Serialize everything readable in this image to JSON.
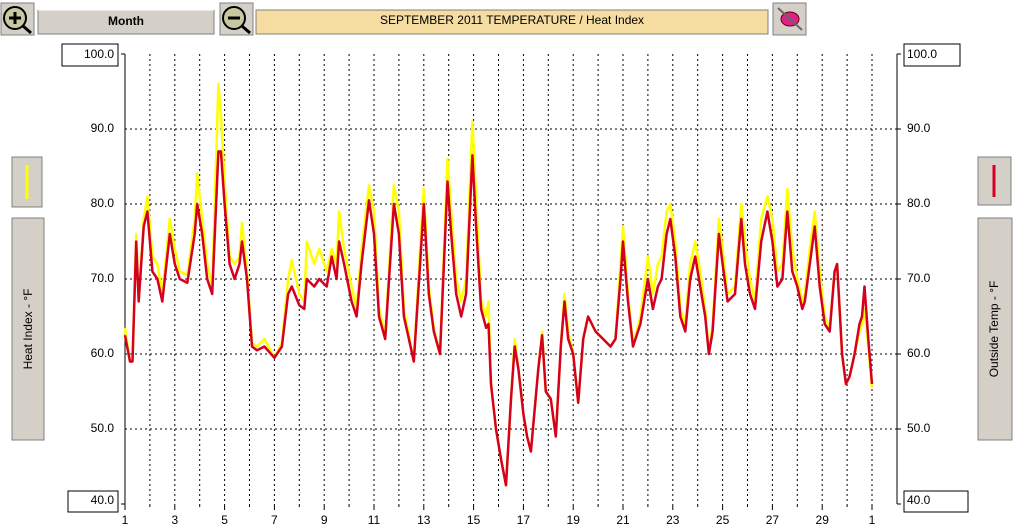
{
  "ui": {
    "period_button": "Month"
  },
  "chart_data": {
    "type": "line",
    "title": "SEPTEMBER 2011  TEMPERATURE / Heat Index",
    "x": [
      1.0,
      1.2,
      1.3,
      1.45,
      1.55,
      1.75,
      1.9,
      2.1,
      2.3,
      2.5,
      2.8,
      3.0,
      3.2,
      3.5,
      3.8,
      3.9,
      4.1,
      4.3,
      4.5,
      4.75,
      4.85,
      5.0,
      5.2,
      5.4,
      5.6,
      5.7,
      5.9,
      6.1,
      6.3,
      6.6,
      7.0,
      7.3,
      7.55,
      7.7,
      8.0,
      8.2,
      8.3,
      8.6,
      8.8,
      9.1,
      9.3,
      9.5,
      9.6,
      9.8,
      10.1,
      10.3,
      10.5,
      10.8,
      11.0,
      11.2,
      11.45,
      11.8,
      12.0,
      12.2,
      12.4,
      12.6,
      12.85,
      13.0,
      13.2,
      13.4,
      13.65,
      13.95,
      14.1,
      14.3,
      14.5,
      14.7,
      14.95,
      15.1,
      15.3,
      15.5,
      15.6,
      15.7,
      15.9,
      16.1,
      16.3,
      16.5,
      16.65,
      16.8,
      17.0,
      17.15,
      17.3,
      17.6,
      17.75,
      17.9,
      18.1,
      18.3,
      18.5,
      18.65,
      18.8,
      19.0,
      19.2,
      19.4,
      19.6,
      19.9,
      20.2,
      20.5,
      20.7,
      20.9,
      21.0,
      21.2,
      21.4,
      21.7,
      22.0,
      22.2,
      22.4,
      22.55,
      22.75,
      22.9,
      23.1,
      23.3,
      23.5,
      23.7,
      23.9,
      24.1,
      24.3,
      24.45,
      24.6,
      24.85,
      25.0,
      25.2,
      25.5,
      25.75,
      25.9,
      26.1,
      26.3,
      26.55,
      26.8,
      27.0,
      27.2,
      27.4,
      27.6,
      27.8,
      28.0,
      28.2,
      28.3,
      28.5,
      28.7,
      28.9,
      29.1,
      29.3,
      29.5,
      29.6,
      29.8,
      29.95,
      30.1,
      30.3,
      30.5,
      30.6,
      30.7,
      30.85,
      31.0
    ],
    "series": [
      {
        "name": "Heat Index - °F",
        "color": "#ffff00",
        "values": [
          63.5,
          59,
          59,
          76,
          67,
          78,
          81,
          73,
          72,
          68,
          78,
          74,
          71,
          70.5,
          78,
          84,
          78,
          72,
          69,
          96,
          92,
          83,
          73,
          72,
          73,
          77.5,
          71,
          61.5,
          61,
          62,
          59.5,
          61.5,
          70,
          72.5,
          68,
          67,
          75,
          72,
          74,
          71,
          74,
          72,
          79,
          74,
          69,
          66,
          74,
          82.5,
          79,
          66,
          62.5,
          82.5,
          79,
          66,
          62.5,
          59,
          74,
          82,
          69,
          63.5,
          60,
          86,
          79,
          70,
          67,
          70,
          91,
          81,
          67,
          65,
          67,
          56,
          50,
          46,
          42.5,
          54,
          62,
          58,
          52,
          49,
          47,
          58,
          63,
          55,
          54,
          49,
          61,
          68,
          63,
          60,
          53.5,
          62,
          65,
          63,
          62,
          61,
          62,
          72,
          77,
          68,
          61,
          65,
          73,
          68,
          72,
          73,
          79,
          80,
          75,
          66,
          64,
          72,
          75,
          71,
          66,
          60,
          64,
          78,
          74,
          68,
          69,
          80,
          75,
          70,
          67,
          78,
          81,
          78,
          71,
          72,
          82,
          74,
          70,
          67,
          68,
          74,
          79,
          71,
          65,
          63.5,
          71,
          72,
          60,
          56,
          57,
          60,
          63,
          64,
          66,
          61,
          55.5
        ]
      },
      {
        "name": "Outside Temp - °F",
        "color": "#d40020",
        "axis": "y2",
        "values": [
          62.5,
          59,
          59,
          75,
          67,
          77,
          79,
          71,
          70,
          67,
          76,
          72,
          70,
          69.5,
          76,
          80,
          76,
          70,
          68,
          87,
          87,
          80,
          72,
          70,
          72,
          75,
          70,
          61,
          60.5,
          61,
          59.5,
          61,
          68,
          69,
          66.5,
          66,
          70,
          69,
          70,
          69,
          73,
          70,
          75,
          72,
          67,
          65,
          72,
          80.5,
          76,
          65,
          62,
          80,
          76,
          65,
          62,
          59,
          72,
          80,
          68,
          63,
          60,
          83,
          76,
          68,
          65,
          68,
          86.5,
          77,
          66,
          63.5,
          64,
          56,
          50,
          46,
          42.5,
          54,
          61,
          58,
          52,
          49,
          47,
          58,
          62.5,
          55,
          54,
          49,
          61,
          67,
          62,
          60,
          53.5,
          62,
          65,
          63,
          62,
          61,
          62,
          70,
          75,
          67,
          61,
          64,
          70,
          66,
          69,
          70,
          76,
          78,
          73,
          65,
          63,
          70,
          73,
          69,
          65,
          60,
          63,
          76,
          72,
          67,
          68,
          78,
          72,
          68,
          66,
          75,
          79,
          75,
          69,
          70,
          79,
          71,
          69,
          66,
          67,
          72,
          77,
          69,
          64,
          63,
          71,
          72,
          60,
          56,
          57,
          60,
          64,
          65,
          69,
          62,
          56
        ]
      }
    ],
    "xlim": [
      1,
      31
    ],
    "xticks": [
      1,
      3,
      5,
      7,
      9,
      11,
      13,
      15,
      17,
      19,
      21,
      23,
      25,
      27,
      29,
      {
        "value": 31,
        "label": "1"
      }
    ],
    "xminorticks": [
      2,
      4,
      6,
      8,
      10,
      12,
      14,
      16,
      18,
      20,
      22,
      24,
      26,
      28,
      30
    ],
    "ylim": [
      40,
      100
    ],
    "yticks": [
      {
        "value": 40,
        "label": "40.0"
      },
      {
        "value": 50,
        "label": "50.0"
      },
      {
        "value": 60,
        "label": "60.0"
      },
      {
        "value": 70,
        "label": "70.0"
      },
      {
        "value": 80,
        "label": "80.0"
      },
      {
        "value": 90,
        "label": "90.0"
      },
      {
        "value": 100,
        "label": "100.0"
      }
    ],
    "y2lim": [
      40,
      100
    ],
    "y2ticks": [
      {
        "value": 40,
        "label": "40.0"
      },
      {
        "value": 50,
        "label": "50.0"
      },
      {
        "value": 60,
        "label": "60.0"
      },
      {
        "value": 70,
        "label": "70.0"
      },
      {
        "value": 80,
        "label": "80.0"
      },
      {
        "value": 90,
        "label": "90.0"
      },
      {
        "value": 100,
        "label": "100.0"
      }
    ],
    "grid": true
  }
}
